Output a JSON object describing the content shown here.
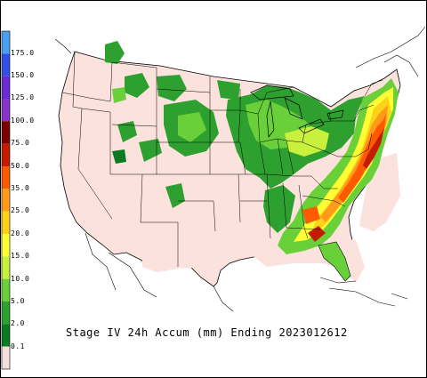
{
  "caption": "Stage IV 24h Accum (mm) Ending 2023012612",
  "legend": {
    "labels": [
      "175.0",
      "150.0",
      "125.0",
      "100.0",
      "75.0",
      "50.0",
      "35.0",
      "25.0",
      "20.0",
      "15.0",
      "10.0",
      "5.0",
      "2.0",
      "0.1"
    ],
    "bins": [
      {
        "color": "#4aa0f0"
      },
      {
        "color": "#3050e8"
      },
      {
        "color": "#6a2bd6"
      },
      {
        "color": "#8a33cc"
      },
      {
        "color": "#7a0000"
      },
      {
        "color": "#c41c00"
      },
      {
        "color": "#ff5a00"
      },
      {
        "color": "#ff9a1a"
      },
      {
        "color": "#ffd21a"
      },
      {
        "color": "#ffff33"
      },
      {
        "color": "#c8f03c"
      },
      {
        "color": "#6ad03a"
      },
      {
        "color": "#2ea030"
      },
      {
        "color": "#0b7b23"
      },
      {
        "color": "#f7dede"
      }
    ]
  },
  "colors": {
    "no_precip": "#fce2dc",
    "boundary": "#000000",
    "greens": [
      "#0b7b23",
      "#2ea030",
      "#6ad03a"
    ],
    "yellows": [
      "#c8f03c",
      "#ffff33",
      "#ffd21a"
    ],
    "oranges": [
      "#ff9a1a",
      "#ff5a00",
      "#c41c00"
    ]
  }
}
